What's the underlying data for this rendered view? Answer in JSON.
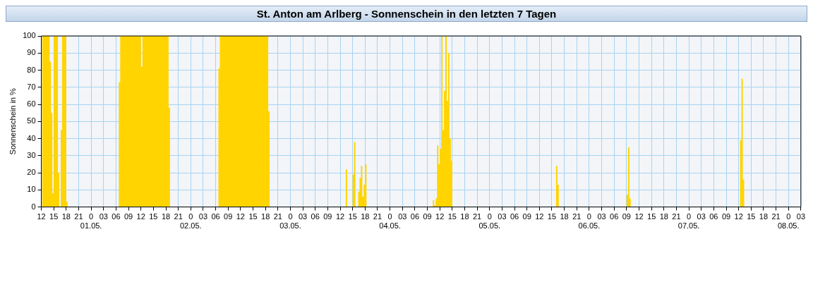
{
  "chart_data": {
    "type": "area",
    "title": "St. Anton am Arlberg - Sonnenschein in den letzten 7 Tagen",
    "ylabel": "Sonnenschein in %",
    "x": [
      "--04-30T12:10",
      "--04-30T12:30",
      "--04-30T12:50",
      "--04-30T13:10",
      "--04-30T13:30",
      "--04-30T13:50",
      "--04-30T14:10",
      "--04-30T14:30",
      "--04-30T14:50",
      "--04-30T15:10",
      "--04-30T15:30",
      "--04-30T15:50",
      "--04-30T16:10",
      "--04-30T16:30",
      "--04-30T16:50",
      "--04-30T17:10",
      "--04-30T17:30",
      "--04-30T17:50",
      "--04-30T18:10",
      "--04-30T18:30",
      "--05-01T06:30",
      "--05-01T06:50",
      "--05-01T07:10",
      "--05-01T07:30",
      "--05-01T07:50",
      "--05-01T08:10",
      "--05-01T08:30",
      "--05-01T08:50",
      "--05-01T09:10",
      "--05-01T09:30",
      "--05-01T09:50",
      "--05-01T10:10",
      "--05-01T10:30",
      "--05-01T10:50",
      "--05-01T11:10",
      "--05-01T11:30",
      "--05-01T11:50",
      "--05-01T12:10",
      "--05-01T12:30",
      "--05-01T12:50",
      "--05-01T13:10",
      "--05-01T13:30",
      "--05-01T13:50",
      "--05-01T14:10",
      "--05-01T14:30",
      "--05-01T14:50",
      "--05-01T15:10",
      "--05-01T15:30",
      "--05-01T15:50",
      "--05-01T16:10",
      "--05-01T16:30",
      "--05-01T16:50",
      "--05-01T17:10",
      "--05-01T17:30",
      "--05-01T17:50",
      "--05-01T18:10",
      "--05-01T18:30",
      "--05-01T18:50",
      "--05-01T19:10",
      "--05-02T06:30",
      "--05-02T06:50",
      "--05-02T07:10",
      "--05-02T07:30",
      "--05-02T07:50",
      "--05-02T08:10",
      "--05-02T08:30",
      "--05-02T08:50",
      "--05-02T09:10",
      "--05-02T09:30",
      "--05-02T09:50",
      "--05-02T10:10",
      "--05-02T10:30",
      "--05-02T10:50",
      "--05-02T11:10",
      "--05-02T11:30",
      "--05-02T11:50",
      "--05-02T12:10",
      "--05-02T12:30",
      "--05-02T12:50",
      "--05-02T13:10",
      "--05-02T13:30",
      "--05-02T13:50",
      "--05-02T14:10",
      "--05-02T14:30",
      "--05-02T14:50",
      "--05-02T15:10",
      "--05-02T15:30",
      "--05-02T15:50",
      "--05-02T16:10",
      "--05-02T16:30",
      "--05-02T16:50",
      "--05-02T17:10",
      "--05-02T17:30",
      "--05-02T17:50",
      "--05-02T18:10",
      "--05-02T18:30",
      "--05-02T18:50",
      "--05-02T19:10",
      "--05-03T13:10",
      "--05-03T13:30",
      "--05-03T13:50",
      "--05-03T14:50",
      "--05-03T15:10",
      "--05-03T15:30",
      "--05-03T15:50",
      "--05-03T16:10",
      "--05-03T16:30",
      "--05-03T16:50",
      "--05-03T17:10",
      "--05-03T17:30",
      "--05-03T17:50",
      "--05-03T18:10",
      "--05-03T18:30",
      "--05-04T10:10",
      "--05-04T10:30",
      "--05-04T10:50",
      "--05-04T11:10",
      "--05-04T11:30",
      "--05-04T11:50",
      "--05-04T12:10",
      "--05-04T12:30",
      "--05-04T12:50",
      "--05-04T13:10",
      "--05-04T13:30",
      "--05-04T13:50",
      "--05-04T14:10",
      "--05-04T14:30",
      "--05-04T14:50",
      "--05-04T15:10",
      "--05-05T15:50",
      "--05-05T16:10",
      "--05-05T16:30",
      "--05-05T16:50",
      "--05-06T08:50",
      "--05-06T09:10",
      "--05-06T09:30",
      "--05-06T09:50",
      "--05-06T10:10",
      "--05-07T12:10",
      "--05-07T12:30",
      "--05-07T12:50",
      "--05-07T13:10",
      "--05-07T13:30"
    ],
    "series": [
      {
        "color": "#ffd400",
        "values": [
          100,
          100,
          100,
          100,
          100,
          100,
          85,
          55,
          8,
          100,
          100,
          100,
          20,
          0,
          45,
          100,
          100,
          100,
          3,
          0,
          0,
          73,
          100,
          100,
          100,
          100,
          100,
          100,
          100,
          100,
          100,
          100,
          100,
          100,
          100,
          100,
          100,
          82,
          100,
          100,
          100,
          100,
          100,
          100,
          100,
          100,
          100,
          100,
          100,
          100,
          100,
          100,
          100,
          100,
          100,
          100,
          100,
          58,
          0,
          0,
          81,
          100,
          100,
          100,
          100,
          100,
          100,
          100,
          100,
          100,
          100,
          100,
          100,
          100,
          100,
          100,
          100,
          100,
          100,
          100,
          100,
          100,
          100,
          100,
          100,
          100,
          100,
          100,
          100,
          100,
          100,
          100,
          100,
          100,
          100,
          100,
          56,
          0,
          0,
          22,
          0,
          0,
          19,
          38,
          0,
          0,
          9,
          17,
          24,
          6,
          13,
          25,
          0,
          0,
          4,
          1,
          5,
          36,
          25,
          34,
          100,
          45,
          68,
          100,
          62,
          90,
          40,
          27,
          0,
          0,
          24,
          13,
          0,
          0,
          7,
          35,
          5,
          0,
          0,
          39,
          75,
          16,
          0
        ]
      }
    ],
    "xlim": [
      "--04-30T12:00",
      "--05-08T03:00"
    ],
    "xticks": [
      {
        "value": "--04-30T12:00",
        "label": "12"
      },
      {
        "value": "--04-30T15:00",
        "label": "15"
      },
      {
        "value": "--04-30T18:00",
        "label": "18"
      },
      {
        "value": "--04-30T21:00",
        "label": "21"
      },
      {
        "value": "--05-01T00:00",
        "label": "0\n01.05."
      },
      {
        "value": "--05-01T03:00",
        "label": "03"
      },
      {
        "value": "--05-01T06:00",
        "label": "06"
      },
      {
        "value": "--05-01T09:00",
        "label": "09"
      },
      {
        "value": "--05-01T12:00",
        "label": "12"
      },
      {
        "value": "--05-01T15:00",
        "label": "15"
      },
      {
        "value": "--05-01T18:00",
        "label": "18"
      },
      {
        "value": "--05-01T21:00",
        "label": "21"
      },
      {
        "value": "--05-02T00:00",
        "label": "0\n02.05."
      },
      {
        "value": "--05-02T03:00",
        "label": "03"
      },
      {
        "value": "--05-02T06:00",
        "label": "06"
      },
      {
        "value": "--05-02T09:00",
        "label": "09"
      },
      {
        "value": "--05-02T12:00",
        "label": "12"
      },
      {
        "value": "--05-02T15:00",
        "label": "15"
      },
      {
        "value": "--05-02T18:00",
        "label": "18"
      },
      {
        "value": "--05-02T21:00",
        "label": "21"
      },
      {
        "value": "--05-03T00:00",
        "label": "0\n03.05."
      },
      {
        "value": "--05-03T03:00",
        "label": "03"
      },
      {
        "value": "--05-03T06:00",
        "label": "06"
      },
      {
        "value": "--05-03T09:00",
        "label": "09"
      },
      {
        "value": "--05-03T12:00",
        "label": "12"
      },
      {
        "value": "--05-03T15:00",
        "label": "15"
      },
      {
        "value": "--05-03T18:00",
        "label": "18"
      },
      {
        "value": "--05-03T21:00",
        "label": "21"
      },
      {
        "value": "--05-04T00:00",
        "label": "0\n04.05."
      },
      {
        "value": "--05-04T03:00",
        "label": "03"
      },
      {
        "value": "--05-04T06:00",
        "label": "06"
      },
      {
        "value": "--05-04T09:00",
        "label": "09"
      },
      {
        "value": "--05-04T12:00",
        "label": "12"
      },
      {
        "value": "--05-04T15:00",
        "label": "15"
      },
      {
        "value": "--05-04T18:00",
        "label": "18"
      },
      {
        "value": "--05-04T21:00",
        "label": "21"
      },
      {
        "value": "--05-05T00:00",
        "label": "0\n05.05."
      },
      {
        "value": "--05-05T03:00",
        "label": "03"
      },
      {
        "value": "--05-05T06:00",
        "label": "06"
      },
      {
        "value": "--05-05T09:00",
        "label": "09"
      },
      {
        "value": "--05-05T12:00",
        "label": "12"
      },
      {
        "value": "--05-05T15:00",
        "label": "15"
      },
      {
        "value": "--05-05T18:00",
        "label": "18"
      },
      {
        "value": "--05-05T21:00",
        "label": "21"
      },
      {
        "value": "--05-06T00:00",
        "label": "0\n06.05."
      },
      {
        "value": "--05-06T03:00",
        "label": "03"
      },
      {
        "value": "--05-06T06:00",
        "label": "06"
      },
      {
        "value": "--05-06T09:00",
        "label": "09"
      },
      {
        "value": "--05-06T12:00",
        "label": "12"
      },
      {
        "value": "--05-06T15:00",
        "label": "15"
      },
      {
        "value": "--05-06T18:00",
        "label": "18"
      },
      {
        "value": "--05-06T21:00",
        "label": "21"
      },
      {
        "value": "--05-07T00:00",
        "label": "0\n07.05."
      },
      {
        "value": "--05-07T03:00",
        "label": "03"
      },
      {
        "value": "--05-07T06:00",
        "label": "06"
      },
      {
        "value": "--05-07T09:00",
        "label": "09"
      },
      {
        "value": "--05-07T12:00",
        "label": "12"
      },
      {
        "value": "--05-07T15:00",
        "label": "15"
      },
      {
        "value": "--05-07T18:00",
        "label": "18"
      },
      {
        "value": "--05-07T21:00",
        "label": "21"
      },
      {
        "value": "--05-08T00:00",
        "label": "0\n08.05."
      },
      {
        "value": "--05-08T03:00",
        "label": "03"
      }
    ],
    "ylim": [
      0,
      100
    ],
    "yticks": [
      0,
      10,
      20,
      30,
      40,
      50,
      60,
      70,
      80,
      90,
      100
    ],
    "grid": true,
    "legend": false
  }
}
